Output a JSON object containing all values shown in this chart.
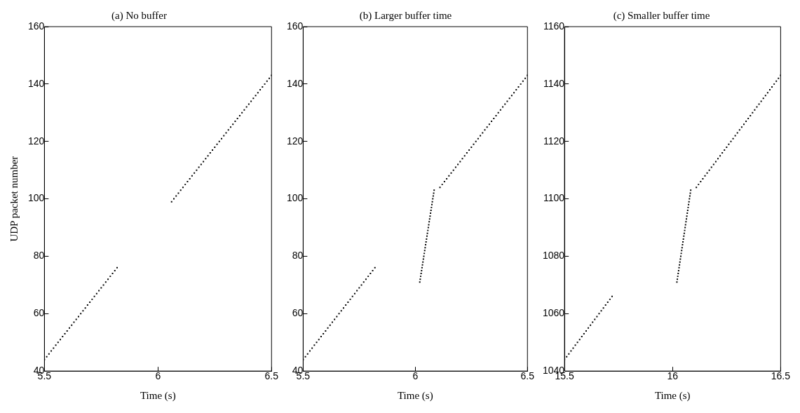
{
  "chart_data": [
    {
      "type": "scatter",
      "title": "(a) No buffer",
      "xlabel": "Time (s)",
      "ylabel": "UDP packet number",
      "xlim": [
        5.5,
        6.5
      ],
      "xticks": [
        5.5,
        6,
        6.5
      ],
      "ylim": [
        40,
        160
      ],
      "yticks": [
        40,
        60,
        80,
        100,
        120,
        140,
        160
      ],
      "grid": false,
      "marker": "square",
      "series": [
        {
          "color": "#000000",
          "x": [
            5.5,
            5.51,
            5.52,
            5.53,
            5.54,
            5.55,
            5.56,
            5.57,
            5.58,
            5.59,
            5.6,
            5.61,
            5.62,
            5.63,
            5.64,
            5.65,
            5.66,
            5.67,
            5.68,
            5.69,
            5.7,
            5.71,
            5.72,
            5.73,
            5.74,
            5.75,
            5.76,
            5.77,
            5.78,
            5.79,
            5.8,
            5.81,
            5.82,
            6.06,
            6.07,
            6.08,
            6.09,
            6.1,
            6.11,
            6.12,
            6.13,
            6.14,
            6.15,
            6.16,
            6.17,
            6.18,
            6.19,
            6.2,
            6.21,
            6.22,
            6.23,
            6.24,
            6.25,
            6.26,
            6.27,
            6.28,
            6.29,
            6.3,
            6.31,
            6.32,
            6.33,
            6.34,
            6.35,
            6.36,
            6.37,
            6.38,
            6.39,
            6.4,
            6.41,
            6.42,
            6.43,
            6.44,
            6.45,
            6.46,
            6.47,
            6.48,
            6.49,
            6.5
          ],
          "values": [
            44,
            45,
            46,
            47,
            48,
            49,
            50,
            51,
            52,
            53,
            54,
            55,
            56,
            57,
            58,
            59,
            60,
            61,
            62,
            63,
            64,
            65,
            66,
            67,
            68,
            69,
            70,
            71,
            72,
            73,
            74,
            75,
            76,
            99,
            100,
            101,
            102,
            103,
            104,
            105,
            106,
            107,
            108,
            109,
            110,
            111,
            112,
            113,
            114,
            115,
            116,
            117,
            118,
            119,
            120,
            121,
            122,
            123,
            124,
            125,
            126,
            127,
            128,
            129,
            130,
            131,
            132,
            133,
            134,
            135,
            136,
            137,
            138,
            139,
            140,
            141,
            142,
            143
          ]
        }
      ]
    },
    {
      "type": "scatter",
      "title": "(b) Larger buffer time",
      "xlabel": "Time (s)",
      "xlim": [
        5.5,
        6.5
      ],
      "xticks": [
        5.5,
        6,
        6.5
      ],
      "ylim": [
        40,
        160
      ],
      "yticks": [
        40,
        60,
        80,
        100,
        120,
        140,
        160
      ],
      "grid": false,
      "marker": "square",
      "series": [
        {
          "color": "#000000",
          "x": [
            5.5,
            5.51,
            5.52,
            5.53,
            5.54,
            5.55,
            5.56,
            5.57,
            5.58,
            5.59,
            5.6,
            5.61,
            5.62,
            5.63,
            5.64,
            5.65,
            5.66,
            5.67,
            5.68,
            5.69,
            5.7,
            5.71,
            5.72,
            5.73,
            5.74,
            5.75,
            5.76,
            5.77,
            5.78,
            5.79,
            5.8,
            5.81,
            5.82,
            6.02,
            6.022,
            6.024,
            6.026,
            6.028,
            6.03,
            6.032,
            6.034,
            6.036,
            6.038,
            6.04,
            6.042,
            6.044,
            6.046,
            6.048,
            6.05,
            6.052,
            6.054,
            6.056,
            6.058,
            6.06,
            6.062,
            6.064,
            6.066,
            6.068,
            6.07,
            6.072,
            6.074,
            6.076,
            6.078,
            6.08,
            6.082,
            6.084,
            6.11,
            6.12,
            6.13,
            6.14,
            6.15,
            6.16,
            6.17,
            6.18,
            6.19,
            6.2,
            6.21,
            6.22,
            6.23,
            6.24,
            6.25,
            6.26,
            6.27,
            6.28,
            6.29,
            6.3,
            6.31,
            6.32,
            6.33,
            6.34,
            6.35,
            6.36,
            6.37,
            6.38,
            6.39,
            6.4,
            6.41,
            6.42,
            6.43,
            6.44,
            6.45,
            6.46,
            6.47,
            6.48,
            6.49,
            6.5
          ],
          "values": [
            44,
            45,
            46,
            47,
            48,
            49,
            50,
            51,
            52,
            53,
            54,
            55,
            56,
            57,
            58,
            59,
            60,
            61,
            62,
            63,
            64,
            65,
            66,
            67,
            68,
            69,
            70,
            71,
            72,
            73,
            74,
            75,
            76,
            71,
            72,
            73,
            74,
            75,
            76,
            77,
            78,
            79,
            80,
            81,
            82,
            83,
            84,
            85,
            86,
            87,
            88,
            89,
            90,
            91,
            92,
            93,
            94,
            95,
            96,
            97,
            98,
            99,
            100,
            101,
            102,
            103,
            104,
            105,
            106,
            107,
            108,
            109,
            110,
            111,
            112,
            113,
            114,
            115,
            116,
            117,
            118,
            119,
            120,
            121,
            122,
            123,
            124,
            125,
            126,
            127,
            128,
            129,
            130,
            131,
            132,
            133,
            134,
            135,
            136,
            137,
            138,
            139,
            140,
            141,
            142,
            143
          ]
        }
      ]
    },
    {
      "type": "scatter",
      "title": "(c) Smaller buffer time",
      "xlabel": "Time (s)",
      "xlim": [
        15.5,
        16.5
      ],
      "xticks": [
        15.5,
        16,
        16.5
      ],
      "ylim": [
        1040,
        1160
      ],
      "yticks": [
        1040,
        1060,
        1080,
        1100,
        1120,
        1140,
        1160
      ],
      "grid": false,
      "marker": "square",
      "series": [
        {
          "color": "#000000",
          "x": [
            15.5,
            15.51,
            15.52,
            15.53,
            15.54,
            15.55,
            15.56,
            15.57,
            15.58,
            15.59,
            15.6,
            15.61,
            15.62,
            15.63,
            15.64,
            15.65,
            15.66,
            15.67,
            15.68,
            15.69,
            15.7,
            15.71,
            15.72,
            16.02,
            16.022,
            16.024,
            16.026,
            16.028,
            16.03,
            16.032,
            16.034,
            16.036,
            16.038,
            16.04,
            16.042,
            16.044,
            16.046,
            16.048,
            16.05,
            16.052,
            16.054,
            16.056,
            16.058,
            16.06,
            16.062,
            16.064,
            16.066,
            16.068,
            16.07,
            16.072,
            16.074,
            16.076,
            16.078,
            16.08,
            16.082,
            16.084,
            16.11,
            16.12,
            16.13,
            16.14,
            16.15,
            16.16,
            16.17,
            16.18,
            16.19,
            16.2,
            16.21,
            16.22,
            16.23,
            16.24,
            16.25,
            16.26,
            16.27,
            16.28,
            16.29,
            16.3,
            16.31,
            16.32,
            16.33,
            16.34,
            16.35,
            16.36,
            16.37,
            16.38,
            16.39,
            16.4,
            16.41,
            16.42,
            16.43,
            16.44,
            16.45,
            16.46,
            16.47,
            16.48,
            16.49,
            16.5
          ],
          "values": [
            1044,
            1045,
            1046,
            1047,
            1048,
            1049,
            1050,
            1051,
            1052,
            1053,
            1054,
            1055,
            1056,
            1057,
            1058,
            1059,
            1060,
            1061,
            1062,
            1063,
            1064,
            1065,
            1066,
            1071,
            1072,
            1073,
            1074,
            1075,
            1076,
            1077,
            1078,
            1079,
            1080,
            1081,
            1082,
            1083,
            1084,
            1085,
            1086,
            1087,
            1088,
            1089,
            1090,
            1091,
            1092,
            1093,
            1094,
            1095,
            1096,
            1097,
            1098,
            1099,
            1100,
            1101,
            1102,
            1103,
            1104,
            1105,
            1106,
            1107,
            1108,
            1109,
            1110,
            1111,
            1112,
            1113,
            1114,
            1115,
            1116,
            1117,
            1118,
            1119,
            1120,
            1121,
            1122,
            1123,
            1124,
            1125,
            1126,
            1127,
            1128,
            1129,
            1130,
            1131,
            1132,
            1133,
            1134,
            1135,
            1136,
            1137,
            1138,
            1139,
            1140,
            1141,
            1142,
            1143
          ]
        }
      ]
    }
  ]
}
